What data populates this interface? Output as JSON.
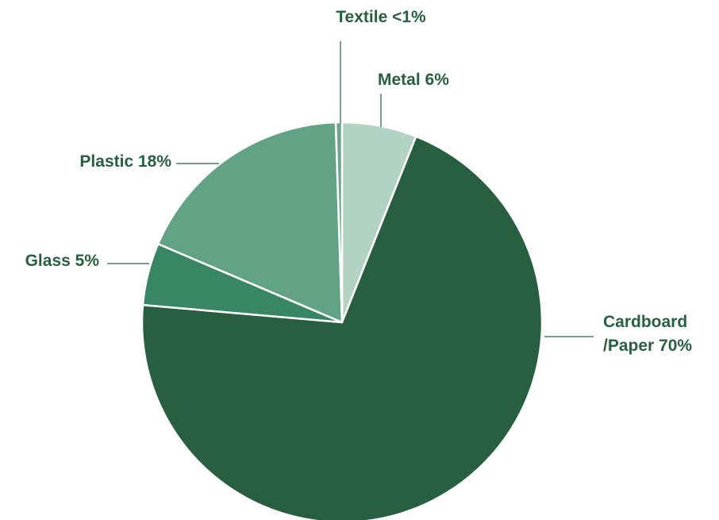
{
  "chart_data": {
    "type": "pie",
    "title": "",
    "start_angle_deg": 0,
    "direction": "clockwise",
    "slices": [
      {
        "key": "metal",
        "label": "Metal 6%",
        "lines": [
          "Metal 6%"
        ],
        "value": 6,
        "color": "#b2d3c4",
        "label_side": "right"
      },
      {
        "key": "cardboard",
        "label": "Cardboard /Paper 70%",
        "lines": [
          "Cardboard",
          "/Paper 70%"
        ],
        "value": 70,
        "color": "#285f40",
        "label_side": "right"
      },
      {
        "key": "glass",
        "label": "Glass 5%",
        "lines": [
          "Glass 5%"
        ],
        "value": 5,
        "color": "#388664",
        "label_side": "left"
      },
      {
        "key": "plastic",
        "label": "Plastic 18%",
        "lines": [
          "Plastic 18%"
        ],
        "value": 18,
        "color": "#63a385",
        "label_side": "left"
      },
      {
        "key": "textile",
        "label": "Textile <1%",
        "lines": [
          "Textile <1%"
        ],
        "value": 0.5,
        "color": "#6fa58e",
        "label_side": "top"
      }
    ],
    "label_color": "#285f40",
    "leader_color": "#4f7f68"
  }
}
